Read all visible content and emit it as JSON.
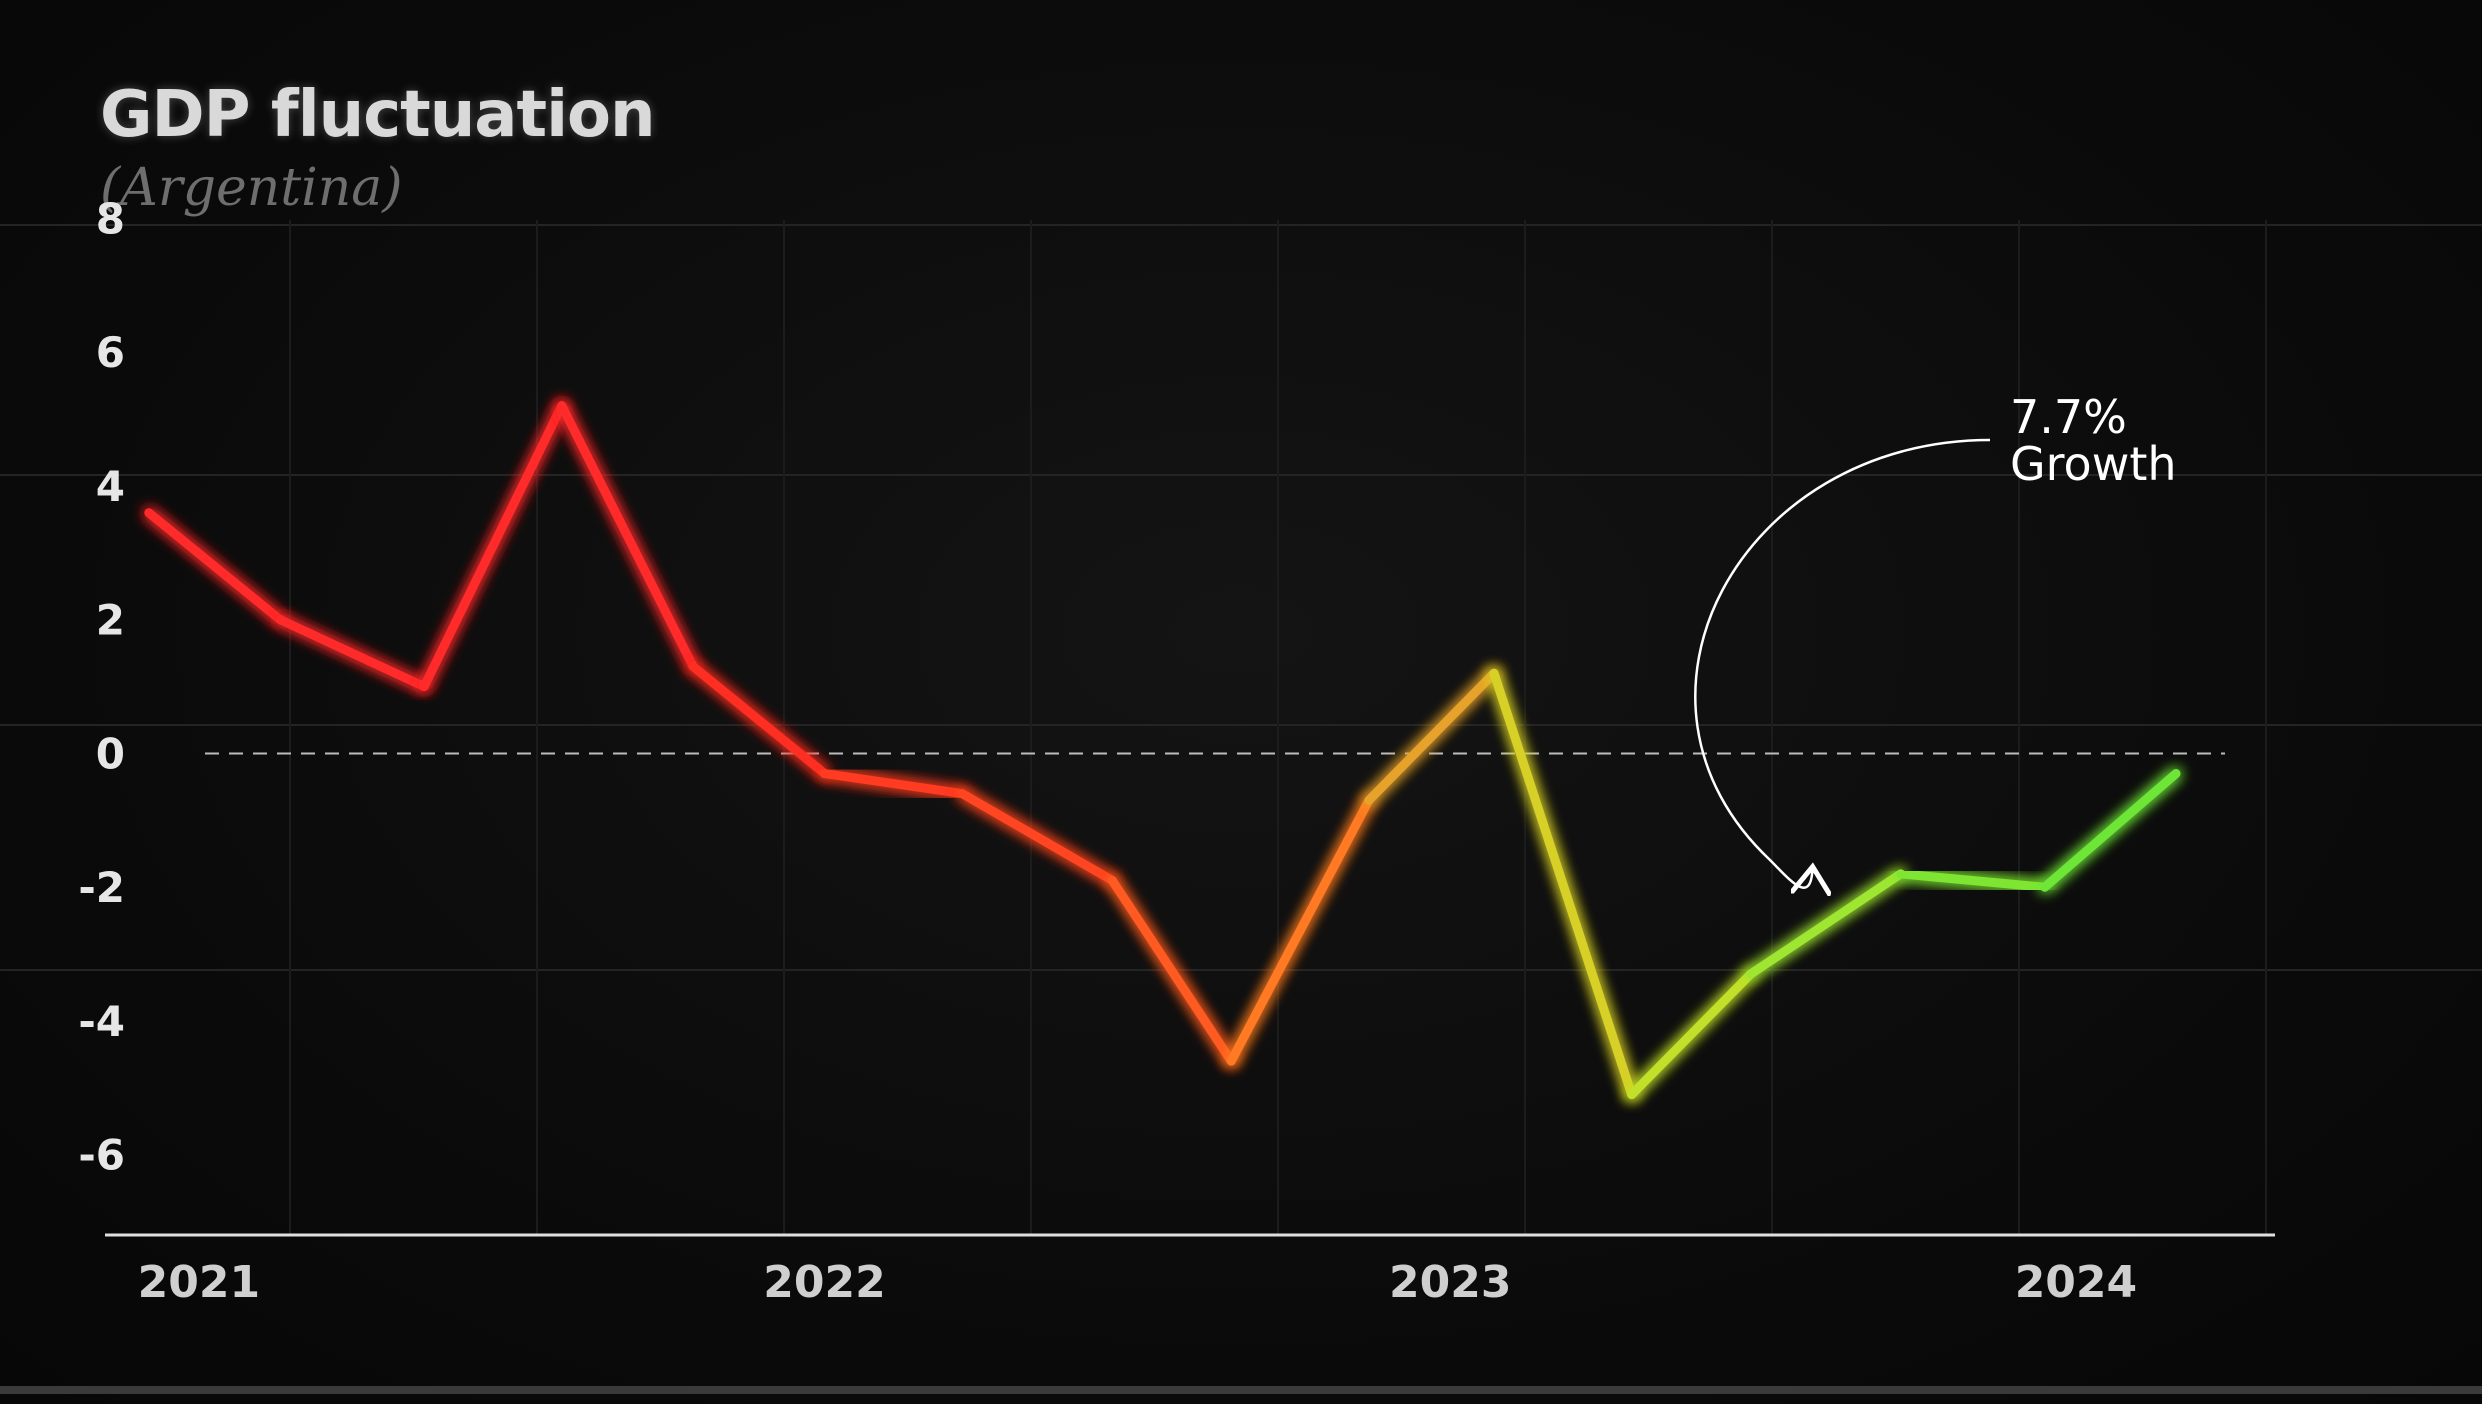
{
  "chart_data": {
    "type": "line",
    "title": "GDP fluctuation",
    "subtitle": "(Argentina)",
    "yticks": [
      "8",
      "6",
      "4",
      "2",
      "0",
      "-2",
      "-4",
      "-6"
    ],
    "ytick_values": [
      8,
      6,
      4,
      2,
      0,
      -2,
      -4,
      -6
    ],
    "ylim": [
      -7.2,
      8.5
    ],
    "xlim": [
      2020.85,
      2024.47
    ],
    "xticks": [
      "2021",
      "2022",
      "2023",
      "2024"
    ],
    "xtick_values": [
      2021,
      2022,
      2023,
      2024
    ],
    "zero_line": "dashed",
    "series": [
      {
        "points": [
          {
            "x": 2020.92,
            "y": 3.6
          },
          {
            "x": 2021.13,
            "y": 2.0
          },
          {
            "x": 2021.36,
            "y": 1.0
          },
          {
            "x": 2021.58,
            "y": 5.2
          },
          {
            "x": 2021.79,
            "y": 1.3
          },
          {
            "x": 2022.0,
            "y": -0.3
          },
          {
            "x": 2022.22,
            "y": -0.6
          },
          {
            "x": 2022.46,
            "y": -1.9
          },
          {
            "x": 2022.65,
            "y": -4.6
          },
          {
            "x": 2022.87,
            "y": -0.7
          },
          {
            "x": 2023.07,
            "y": 1.2
          },
          {
            "x": 2023.29,
            "y": -5.1
          },
          {
            "x": 2023.48,
            "y": -3.3
          },
          {
            "x": 2023.72,
            "y": -1.8
          },
          {
            "x": 2023.95,
            "y": -2.0
          },
          {
            "x": 2024.16,
            "y": -0.3
          }
        ],
        "colors": [
          "#ff2a2a",
          "#ff2a2a",
          "#ff2a2a",
          "#ff2a2a",
          "#ff2f24",
          "#ff3a22",
          "#ff4422",
          "#ff5a22",
          "#ff7a22",
          "#e6a22a",
          "#d7d028",
          "#c2e02a",
          "#9ee630",
          "#7ee633",
          "#6ee638",
          "#5ee63a"
        ]
      }
    ],
    "annotation": {
      "line1": "7.7%",
      "line2": "Growth",
      "arrow_points_to": {
        "x": 2023.55,
        "y": -2.5
      }
    },
    "colors": {
      "background": "#0b0b0b",
      "axis": "#e0e0e0",
      "grid": "#242424"
    }
  }
}
